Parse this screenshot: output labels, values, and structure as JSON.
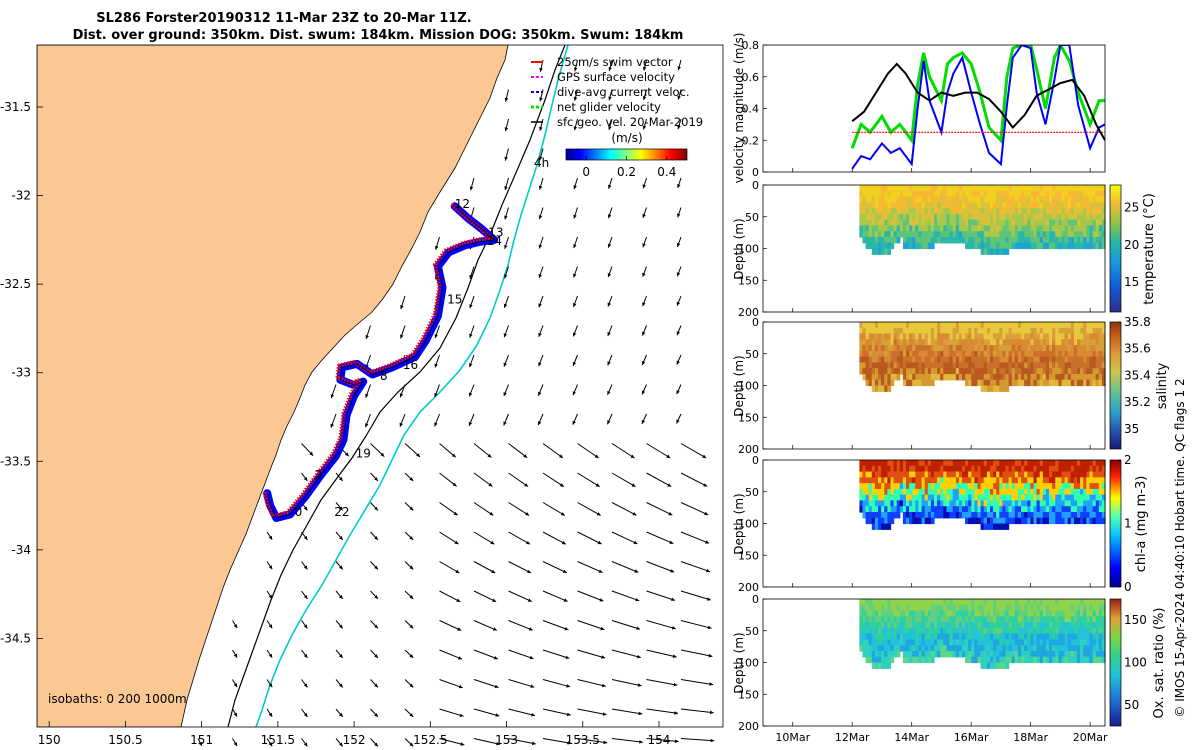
{
  "chart_data": [
    {
      "type": "map",
      "title_line1": "SL286 Forster20190312 11-Mar 23Z to 20-Mar 11Z.",
      "title_line2": "Dist. over ground: 350km. Dist. swum: 184km. Mission DOG: 350km. Swum: 184km",
      "lon_ticks": [
        "150",
        "150.5",
        "151",
        "151.5",
        "152",
        "152.5",
        "153",
        "153.5",
        "154"
      ],
      "lat_ticks": [
        "-31.5",
        "-32",
        "-32.5",
        "-33",
        "-33.5",
        "-34",
        "-34.5"
      ],
      "xlim": [
        149.92,
        154.42
      ],
      "ylim": [
        -35.0,
        -31.15
      ],
      "isobaths_label": "isobaths: 0   200  1000m",
      "legend": [
        {
          "label": "25cm/s swim vector",
          "color": "#ff0000"
        },
        {
          "label": "GPS surface velocity",
          "color": "#ff00ff"
        },
        {
          "label": "dive-avg current veloc.",
          "color": "#0000ff"
        },
        {
          "label": "net glider velocity",
          "color": "#00ee00"
        },
        {
          "label": "sfc geo. vel. 20-Mar-2019",
          "color": "#000000"
        }
      ],
      "colorbar": {
        "title": "(m/s)",
        "ticks": [
          "0",
          "0.2",
          "0.4"
        ],
        "range": [
          -0.1,
          0.5
        ]
      },
      "day_labels": [
        {
          "text": "12",
          "lon": 152.66,
          "lat": -32.07
        },
        {
          "text": "13",
          "lon": 152.88,
          "lat": -32.23
        },
        {
          "text": "14",
          "lon": 152.87,
          "lat": -32.28
        },
        {
          "text": "15",
          "lon": 152.61,
          "lat": -32.61
        },
        {
          "text": "16",
          "lon": 152.32,
          "lat": -32.98
        },
        {
          "text": "8",
          "lon": 152.17,
          "lat": -33.04
        },
        {
          "text": "19",
          "lon": 152.01,
          "lat": -33.48
        },
        {
          "text": "2",
          "lon": 151.74,
          "lat": -33.6
        },
        {
          "text": "0",
          "lon": 151.61,
          "lat": -33.81
        },
        {
          "text": "22",
          "lon": 151.87,
          "lat": -33.81
        },
        {
          "text": "4h",
          "lon": 153.18,
          "lat": -31.84
        }
      ],
      "glider_track": [
        [
          152.66,
          -32.06
        ],
        [
          152.75,
          -32.13
        ],
        [
          152.84,
          -32.19
        ],
        [
          152.92,
          -32.25
        ],
        [
          152.83,
          -32.26
        ],
        [
          152.73,
          -32.28
        ],
        [
          152.62,
          -32.32
        ],
        [
          152.55,
          -32.4
        ],
        [
          152.58,
          -32.52
        ],
        [
          152.55,
          -32.68
        ],
        [
          152.47,
          -32.82
        ],
        [
          152.4,
          -32.91
        ],
        [
          152.25,
          -32.97
        ],
        [
          152.12,
          -33.01
        ],
        [
          152.02,
          -32.95
        ],
        [
          151.92,
          -32.97
        ],
        [
          151.91,
          -33.04
        ],
        [
          152.0,
          -33.07
        ],
        [
          152.06,
          -33.05
        ],
        [
          152.0,
          -33.13
        ],
        [
          151.95,
          -33.24
        ],
        [
          151.93,
          -33.38
        ],
        [
          151.88,
          -33.47
        ],
        [
          151.78,
          -33.58
        ],
        [
          151.68,
          -33.7
        ],
        [
          151.58,
          -33.8
        ],
        [
          151.49,
          -33.82
        ],
        [
          151.45,
          -33.75
        ],
        [
          151.43,
          -33.68
        ]
      ]
    },
    {
      "type": "line",
      "ylabel": "velocity magnitude (m/s)",
      "ylim": [
        0,
        0.8
      ],
      "y_ticks": [
        "0",
        "0.2",
        "0.4",
        "0.6",
        "0.8"
      ],
      "x_range_days": [
        9,
        20.5
      ],
      "series": [
        {
          "name": "sfc geo. vel.",
          "color": "#000000",
          "x": [
            12,
            12.4,
            12.8,
            13.2,
            13.5,
            13.8,
            14.2,
            14.6,
            15,
            15.4,
            15.8,
            16.2,
            16.6,
            17,
            17.4,
            17.8,
            18.2,
            18.6,
            19,
            19.4,
            19.8,
            20.2,
            20.5
          ],
          "y": [
            0.32,
            0.38,
            0.5,
            0.62,
            0.68,
            0.62,
            0.5,
            0.45,
            0.5,
            0.48,
            0.5,
            0.5,
            0.46,
            0.38,
            0.28,
            0.36,
            0.48,
            0.52,
            0.56,
            0.58,
            0.48,
            0.3,
            0.2
          ]
        },
        {
          "name": "25cm/s swim vector",
          "color": "#ff0000",
          "x": [
            12,
            20.5
          ],
          "y": [
            0.25,
            0.25
          ]
        },
        {
          "name": "dive-avg current veloc.",
          "color": "#0000ff",
          "x": [
            12,
            12.3,
            12.6,
            13,
            13.3,
            13.6,
            14,
            14.2,
            14.4,
            14.6,
            15,
            15.2,
            15.4,
            15.7,
            16,
            16.3,
            16.6,
            17,
            17.2,
            17.4,
            17.7,
            18,
            18.2,
            18.5,
            18.8,
            19,
            19.3,
            19.6,
            20,
            20.3,
            20.5
          ],
          "y": [
            0.02,
            0.1,
            0.08,
            0.18,
            0.12,
            0.15,
            0.05,
            0.4,
            0.7,
            0.45,
            0.25,
            0.5,
            0.62,
            0.72,
            0.5,
            0.3,
            0.12,
            0.05,
            0.42,
            0.72,
            0.8,
            0.78,
            0.5,
            0.3,
            0.58,
            0.8,
            0.8,
            0.42,
            0.15,
            0.28,
            0.3
          ]
        },
        {
          "name": "net glider velocity",
          "color": "#00dd00",
          "x": [
            12,
            12.3,
            12.6,
            13,
            13.3,
            13.6,
            14,
            14.2,
            14.4,
            14.6,
            15,
            15.2,
            15.4,
            15.7,
            16,
            16.3,
            16.6,
            17,
            17.2,
            17.4,
            17.7,
            18,
            18.2,
            18.5,
            18.8,
            19,
            19.3,
            19.6,
            20,
            20.3,
            20.5
          ],
          "y": [
            0.15,
            0.3,
            0.25,
            0.35,
            0.25,
            0.3,
            0.2,
            0.55,
            0.75,
            0.6,
            0.45,
            0.68,
            0.72,
            0.75,
            0.68,
            0.5,
            0.28,
            0.2,
            0.6,
            0.78,
            0.8,
            0.8,
            0.65,
            0.4,
            0.72,
            0.8,
            0.7,
            0.5,
            0.3,
            0.45,
            0.45
          ]
        }
      ]
    },
    {
      "type": "heatmap",
      "ylabel": "Depth (m)",
      "cbar_label": "temperature (°C)",
      "y_ticks": [
        "0",
        "50",
        "100",
        "150",
        "200"
      ],
      "cbar_ticks": [
        "15",
        "20",
        "25"
      ],
      "cbar_range": [
        11,
        28
      ]
    },
    {
      "type": "heatmap",
      "ylabel": "Depth (m)",
      "cbar_label": "salinity",
      "y_ticks": [
        "0",
        "50",
        "100",
        "150",
        "200"
      ],
      "cbar_ticks": [
        "35",
        "35.2",
        "35.4",
        "35.6",
        "35.8"
      ],
      "cbar_range": [
        34.85,
        35.8
      ]
    },
    {
      "type": "heatmap",
      "ylabel": "Depth (m)",
      "cbar_label": "chl-a (mg m-3)",
      "y_ticks": [
        "0",
        "50",
        "100",
        "150",
        "200"
      ],
      "cbar_ticks": [
        "0",
        "1",
        "2"
      ],
      "cbar_range": [
        0,
        2
      ]
    },
    {
      "type": "heatmap",
      "ylabel": "Depth (m)",
      "cbar_label": "Ox. sat. ratio (%)",
      "y_ticks": [
        "0",
        "50",
        "100",
        "150",
        "200"
      ],
      "cbar_ticks": [
        "50",
        "100",
        "150"
      ],
      "cbar_range": [
        25,
        175
      ],
      "x_ticks": [
        "10Mar",
        "12Mar",
        "14Mar",
        "16Mar",
        "18Mar",
        "20Mar"
      ]
    }
  ],
  "footer_text": "© IMOS 15-Apr-2024 04:40:10 Hobart time. QC flags 1  2"
}
